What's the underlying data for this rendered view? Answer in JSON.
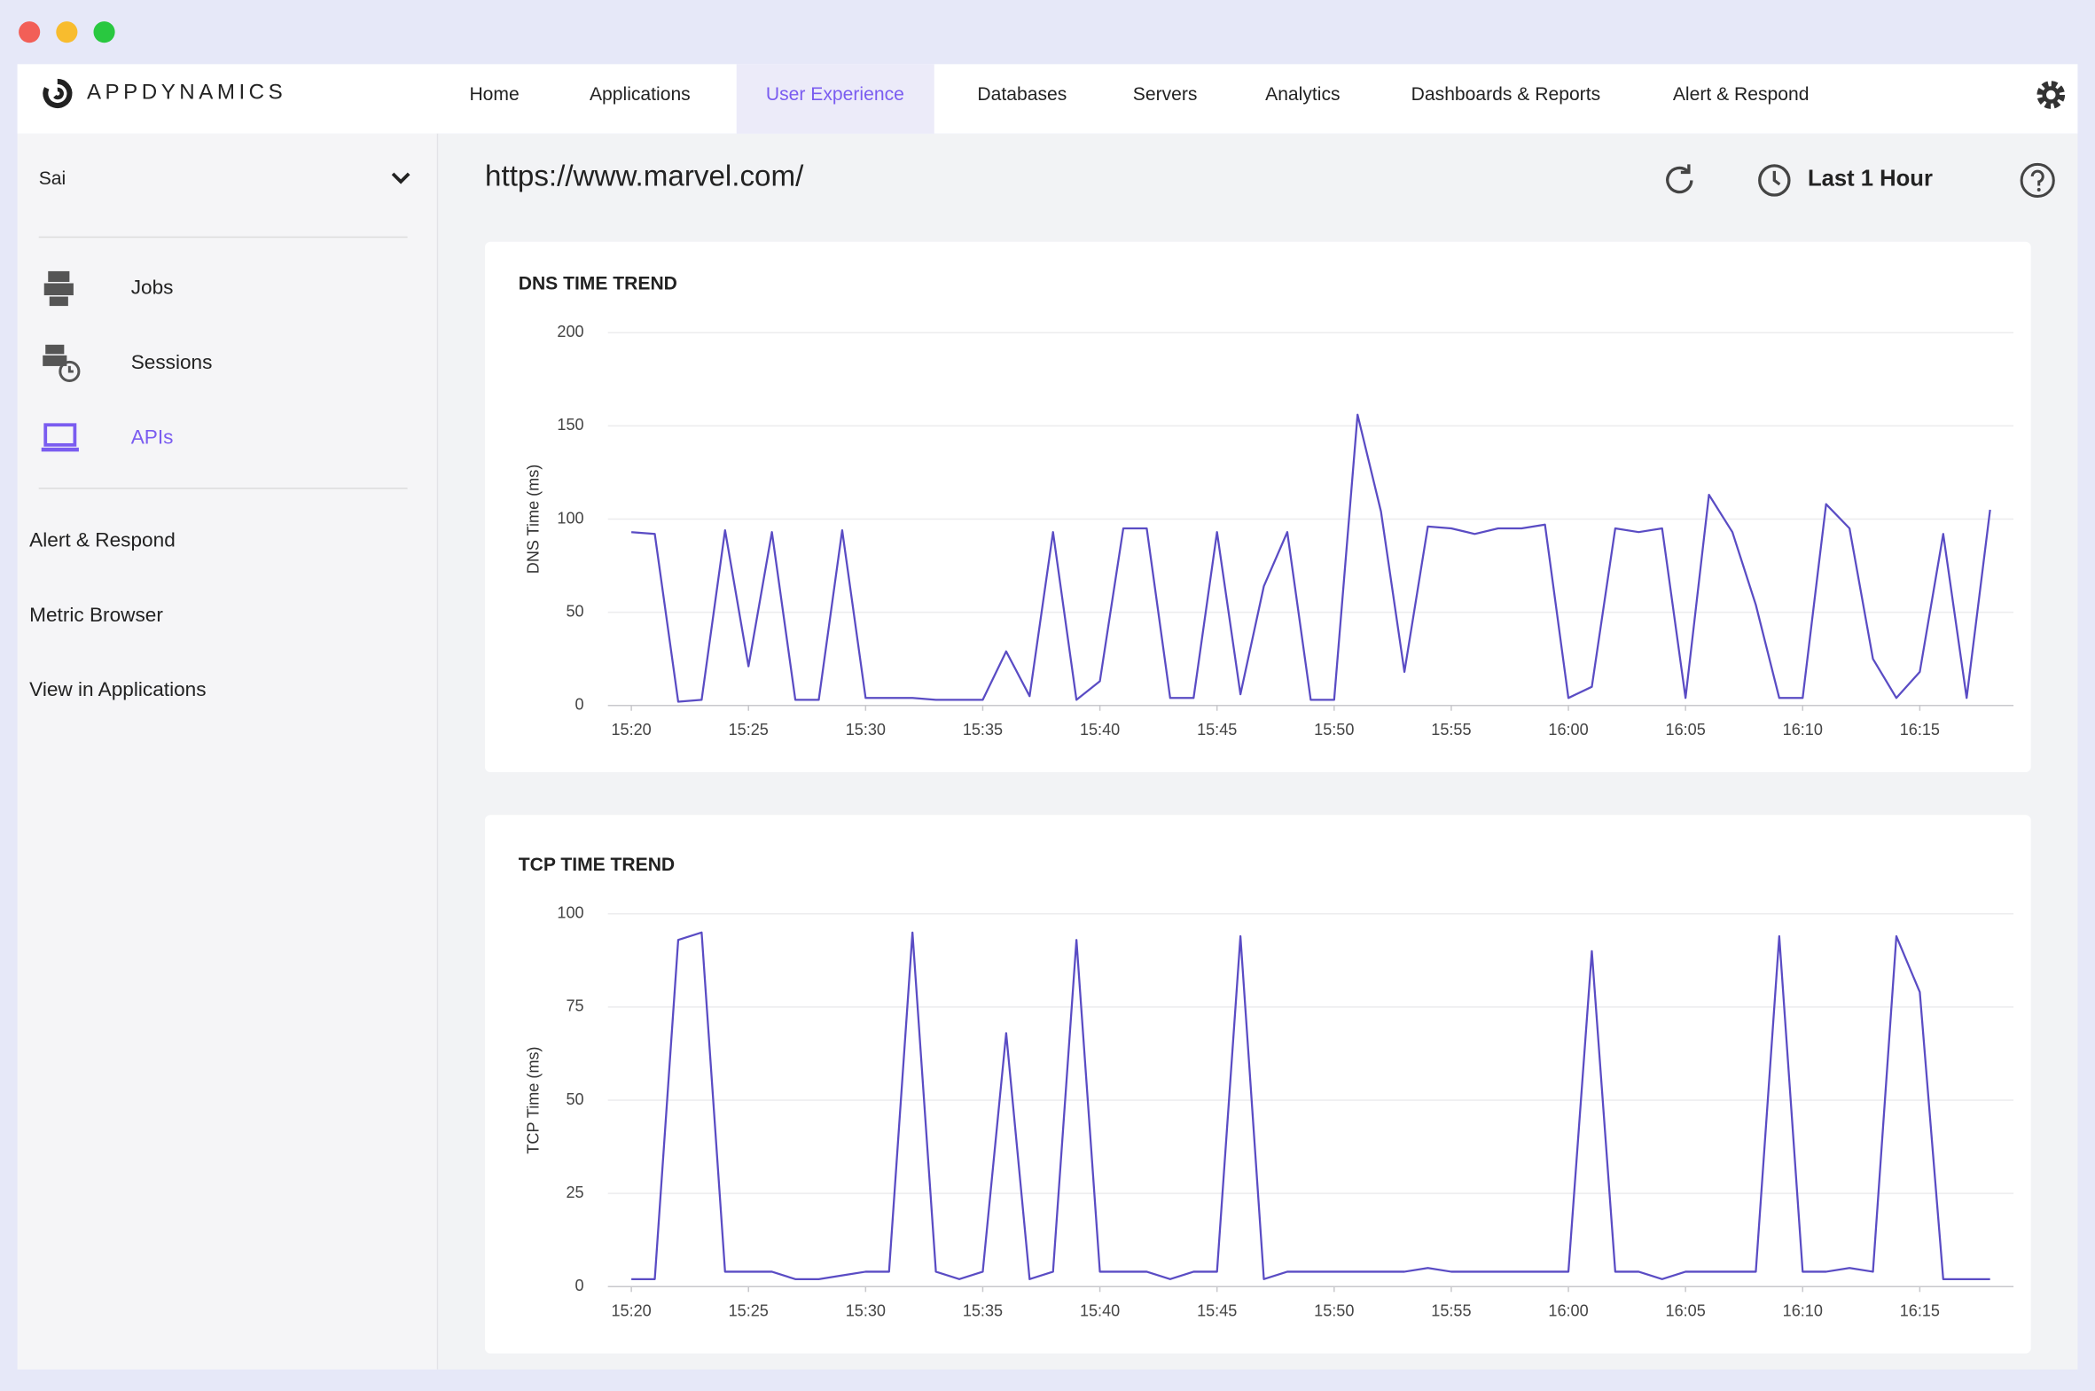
{
  "brand": "APPDYNAMICS",
  "nav": {
    "items": [
      "Home",
      "Applications",
      "User Experience",
      "Databases",
      "Servers",
      "Analytics",
      "Dashboards & Reports",
      "Alert & Respond"
    ],
    "active": 2
  },
  "sidebar": {
    "selector": "Sai",
    "items": [
      "Jobs",
      "Sessions",
      "APIs"
    ],
    "active": 2,
    "links": [
      "Alert & Respond",
      "Metric Browser",
      "View in Applications"
    ]
  },
  "header": {
    "url": "https://www.marvel.com/",
    "time_range": "Last 1 Hour"
  },
  "chart_data": [
    {
      "type": "line",
      "title": "DNS TIME TREND",
      "y_label": "DNS Time (ms)",
      "x": [
        "15:20",
        "15:21",
        "15:22",
        "15:23",
        "15:24",
        "15:25",
        "15:26",
        "15:27",
        "15:28",
        "15:29",
        "15:30",
        "15:31",
        "15:32",
        "15:33",
        "15:34",
        "15:35",
        "15:36",
        "15:37",
        "15:38",
        "15:39",
        "15:40",
        "15:41",
        "15:42",
        "15:43",
        "15:44",
        "15:45",
        "15:46",
        "15:47",
        "15:48",
        "15:49",
        "15:50",
        "15:51",
        "15:52",
        "15:53",
        "15:54",
        "15:55",
        "15:56",
        "15:57",
        "15:58",
        "15:59",
        "16:00",
        "16:01",
        "16:02",
        "16:03",
        "16:04",
        "16:05",
        "16:06",
        "16:07",
        "16:08",
        "16:09",
        "16:10",
        "16:11",
        "16:12",
        "16:13",
        "16:14",
        "16:15",
        "16:16",
        "16:17",
        "16:18"
      ],
      "xlim": [
        "15:19",
        "16:19"
      ],
      "xticks": [
        "15:20",
        "15:25",
        "15:30",
        "15:35",
        "15:40",
        "15:45",
        "15:50",
        "15:55",
        "16:00",
        "16:05",
        "16:10",
        "16:15"
      ],
      "ylim": [
        0,
        200
      ],
      "yticks": [
        0,
        50,
        100,
        150,
        200
      ],
      "grid": true,
      "series": [
        {
          "color": "#5a4cc4",
          "values": [
            93,
            92,
            2,
            3,
            94,
            21,
            93,
            3,
            3,
            94,
            4,
            4,
            4,
            3,
            3,
            3,
            29,
            5,
            93,
            3,
            13,
            95,
            95,
            4,
            4,
            93,
            6,
            64,
            93,
            3,
            3,
            156,
            104,
            18,
            96,
            95,
            92,
            95,
            95,
            97,
            4,
            10,
            95,
            93,
            95,
            4,
            113,
            93,
            54,
            4,
            4,
            108,
            95,
            25,
            4,
            18,
            92,
            4,
            105
          ]
        }
      ]
    },
    {
      "type": "line",
      "title": "TCP TIME TREND",
      "y_label": "TCP Time (ms)",
      "x": [
        "15:20",
        "15:21",
        "15:22",
        "15:23",
        "15:24",
        "15:25",
        "15:26",
        "15:27",
        "15:28",
        "15:29",
        "15:30",
        "15:31",
        "15:32",
        "15:33",
        "15:34",
        "15:35",
        "15:36",
        "15:37",
        "15:38",
        "15:39",
        "15:40",
        "15:41",
        "15:42",
        "15:43",
        "15:44",
        "15:45",
        "15:46",
        "15:47",
        "15:48",
        "15:49",
        "15:50",
        "15:51",
        "15:52",
        "15:53",
        "15:54",
        "15:55",
        "15:56",
        "15:57",
        "15:58",
        "15:59",
        "16:00",
        "16:01",
        "16:02",
        "16:03",
        "16:04",
        "16:05",
        "16:06",
        "16:07",
        "16:08",
        "16:09",
        "16:10",
        "16:11",
        "16:12",
        "16:13",
        "16:14",
        "16:15",
        "16:16",
        "16:17",
        "16:18"
      ],
      "xlim": [
        "15:19",
        "16:19"
      ],
      "xticks": [
        "15:20",
        "15:25",
        "15:30",
        "15:35",
        "15:40",
        "15:45",
        "15:50",
        "15:55",
        "16:00",
        "16:05",
        "16:10",
        "16:15"
      ],
      "ylim": [
        0,
        100
      ],
      "yticks": [
        0,
        25,
        50,
        75,
        100
      ],
      "grid": true,
      "series": [
        {
          "color": "#5a4cc4",
          "values": [
            2,
            2,
            93,
            95,
            4,
            4,
            4,
            2,
            2,
            3,
            4,
            4,
            95,
            4,
            2,
            4,
            68,
            2,
            4,
            93,
            4,
            4,
            4,
            2,
            4,
            4,
            94,
            2,
            4,
            4,
            4,
            4,
            4,
            4,
            5,
            4,
            4,
            4,
            4,
            4,
            4,
            90,
            4,
            4,
            2,
            4,
            4,
            4,
            4,
            94,
            4,
            4,
            5,
            4,
            94,
            79,
            2,
            2,
            2
          ]
        }
      ]
    }
  ]
}
